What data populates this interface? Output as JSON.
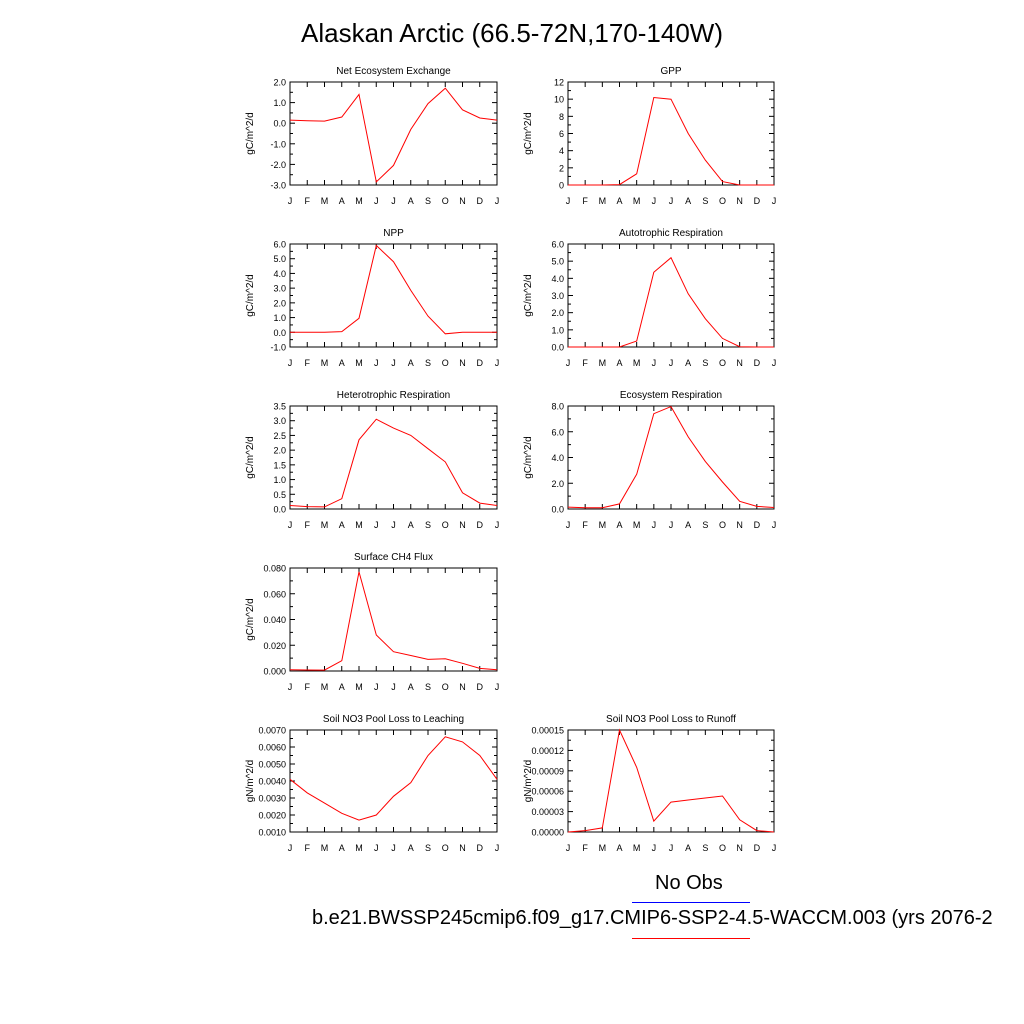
{
  "page": {
    "title": "Alaskan Arctic (66.5-72N,170-140W)",
    "legend_noobs": "No Obs",
    "legend_case": "b.e21.BWSSP245cmip6.f09_g17.CMIP6-SSP2-4.5-WACCM.003 (yrs 2076-2",
    "colors": {
      "model_line": "#ff0000",
      "obs_line": "#0000ff",
      "axis": "#000000"
    }
  },
  "chart_data": [
    {
      "type": "line",
      "title": "Net Ecosystem Exchange",
      "ylabel": "gC/m^2/d",
      "ylim": [
        -3.0,
        2.0
      ],
      "yticks": [
        -3.0,
        -2.0,
        -1.0,
        0.0,
        1.0,
        2.0
      ],
      "ytick_labels": [
        "-3.0",
        "-2.0",
        "-1.0",
        "0.0",
        "1.0",
        "2.0"
      ],
      "categories": [
        "J",
        "F",
        "M",
        "A",
        "M",
        "J",
        "J",
        "A",
        "S",
        "O",
        "N",
        "D",
        "J"
      ],
      "values": [
        0.15,
        0.12,
        0.1,
        0.3,
        1.4,
        -2.85,
        -2.05,
        -0.3,
        0.95,
        1.7,
        0.65,
        0.25,
        0.15
      ]
    },
    {
      "type": "line",
      "title": "GPP",
      "ylabel": "gC/m^2/d",
      "ylim": [
        0,
        12
      ],
      "yticks": [
        0,
        2,
        4,
        6,
        8,
        10,
        12
      ],
      "ytick_labels": [
        "0",
        "2",
        "4",
        "6",
        "8",
        "10",
        "12"
      ],
      "categories": [
        "J",
        "F",
        "M",
        "A",
        "M",
        "J",
        "J",
        "A",
        "S",
        "O",
        "N",
        "D",
        "J"
      ],
      "values": [
        0,
        0,
        0,
        0.05,
        1.3,
        10.2,
        10.0,
        6.0,
        2.9,
        0.4,
        0.0,
        0,
        0
      ]
    },
    {
      "type": "line",
      "title": "NPP",
      "ylabel": "gC/m^2/d",
      "ylim": [
        -1.0,
        6.0
      ],
      "yticks": [
        -1.0,
        0.0,
        1.0,
        2.0,
        3.0,
        4.0,
        5.0,
        6.0
      ],
      "ytick_labels": [
        "-1.0",
        "0.0",
        "1.0",
        "2.0",
        "3.0",
        "4.0",
        "5.0",
        "6.0"
      ],
      "categories": [
        "J",
        "F",
        "M",
        "A",
        "M",
        "J",
        "J",
        "A",
        "S",
        "O",
        "N",
        "D",
        "J"
      ],
      "values": [
        0.0,
        0.0,
        0.0,
        0.05,
        0.95,
        5.9,
        4.8,
        2.85,
        1.1,
        -0.1,
        0.0,
        0.0,
        0.0
      ]
    },
    {
      "type": "line",
      "title": "Autotrophic Respiration",
      "ylabel": "gC/m^2/d",
      "ylim": [
        0.0,
        6.0
      ],
      "yticks": [
        0.0,
        1.0,
        2.0,
        3.0,
        4.0,
        5.0,
        6.0
      ],
      "ytick_labels": [
        "0.0",
        "1.0",
        "2.0",
        "3.0",
        "4.0",
        "5.0",
        "6.0"
      ],
      "categories": [
        "J",
        "F",
        "M",
        "A",
        "M",
        "J",
        "J",
        "A",
        "S",
        "O",
        "N",
        "D",
        "J"
      ],
      "values": [
        0.0,
        0.0,
        0.0,
        0.0,
        0.35,
        4.35,
        5.2,
        3.1,
        1.65,
        0.5,
        0.02,
        0.0,
        0.0
      ]
    },
    {
      "type": "line",
      "title": "Heterotrophic Respiration",
      "ylabel": "gC/m^2/d",
      "ylim": [
        0.0,
        3.5
      ],
      "yticks": [
        0.0,
        0.5,
        1.0,
        1.5,
        2.0,
        2.5,
        3.0,
        3.5
      ],
      "ytick_labels": [
        "0.0",
        "0.5",
        "1.0",
        "1.5",
        "2.0",
        "2.5",
        "3.0",
        "3.5"
      ],
      "categories": [
        "J",
        "F",
        "M",
        "A",
        "M",
        "J",
        "J",
        "A",
        "S",
        "O",
        "N",
        "D",
        "J"
      ],
      "values": [
        0.12,
        0.08,
        0.07,
        0.35,
        2.35,
        3.05,
        2.75,
        2.5,
        2.05,
        1.6,
        0.55,
        0.2,
        0.12
      ]
    },
    {
      "type": "line",
      "title": "Ecosystem Respiration",
      "ylabel": "gC/m^2/d",
      "ylim": [
        0.0,
        8.0
      ],
      "yticks": [
        0.0,
        2.0,
        4.0,
        6.0,
        8.0
      ],
      "ytick_labels": [
        "0.0",
        "2.0",
        "4.0",
        "6.0",
        "8.0"
      ],
      "categories": [
        "J",
        "F",
        "M",
        "A",
        "M",
        "J",
        "J",
        "A",
        "S",
        "O",
        "N",
        "D",
        "J"
      ],
      "values": [
        0.15,
        0.1,
        0.1,
        0.4,
        2.7,
        7.4,
        7.95,
        5.6,
        3.7,
        2.1,
        0.6,
        0.2,
        0.12
      ]
    },
    {
      "type": "line",
      "title": "Surface CH4 Flux",
      "ylabel": "gC/m^2/d",
      "ylim": [
        0.0,
        0.08
      ],
      "yticks": [
        0.0,
        0.02,
        0.04,
        0.06,
        0.08
      ],
      "ytick_labels": [
        "0.000",
        "0.020",
        "0.040",
        "0.060",
        "0.080"
      ],
      "categories": [
        "J",
        "F",
        "M",
        "A",
        "M",
        "J",
        "J",
        "A",
        "S",
        "O",
        "N",
        "D",
        "J"
      ],
      "values": [
        0.001,
        0.0008,
        0.0007,
        0.008,
        0.077,
        0.028,
        0.015,
        0.012,
        0.009,
        0.0095,
        0.006,
        0.002,
        0.001
      ]
    },
    {
      "type": "line",
      "title": "Soil NO3 Pool Loss to Leaching",
      "ylabel": "gN/m^2/d",
      "ylim": [
        0.001,
        0.007
      ],
      "yticks": [
        0.001,
        0.002,
        0.003,
        0.004,
        0.005,
        0.006,
        0.007
      ],
      "ytick_labels": [
        "0.0010",
        "0.0020",
        "0.0030",
        "0.0040",
        "0.0050",
        "0.0060",
        "0.0070"
      ],
      "categories": [
        "J",
        "F",
        "M",
        "A",
        "M",
        "J",
        "J",
        "A",
        "S",
        "O",
        "N",
        "D",
        "J"
      ],
      "values": [
        0.0041,
        0.0033,
        0.0027,
        0.0021,
        0.0017,
        0.002,
        0.0031,
        0.0039,
        0.0055,
        0.0066,
        0.0063,
        0.0055,
        0.0041
      ]
    },
    {
      "type": "line",
      "title": "Soil NO3 Pool Loss to Runoff",
      "ylabel": "gN/m^2/d",
      "ylim": [
        0.0,
        0.00015
      ],
      "yticks": [
        0.0,
        3e-05,
        6e-05,
        9e-05,
        0.00012,
        0.00015
      ],
      "ytick_labels": [
        "0.00000",
        "0.00003",
        "0.00006",
        "0.00009",
        "0.00012",
        "0.00015"
      ],
      "categories": [
        "J",
        "F",
        "M",
        "A",
        "M",
        "J",
        "J",
        "A",
        "S",
        "O",
        "N",
        "D",
        "J"
      ],
      "values": [
        0.0,
        2e-06,
        6e-06,
        0.00015,
        9.5e-05,
        1.6e-05,
        4.4e-05,
        4.7e-05,
        5e-05,
        5.3e-05,
        1.8e-05,
        2e-06,
        0.0
      ]
    }
  ]
}
